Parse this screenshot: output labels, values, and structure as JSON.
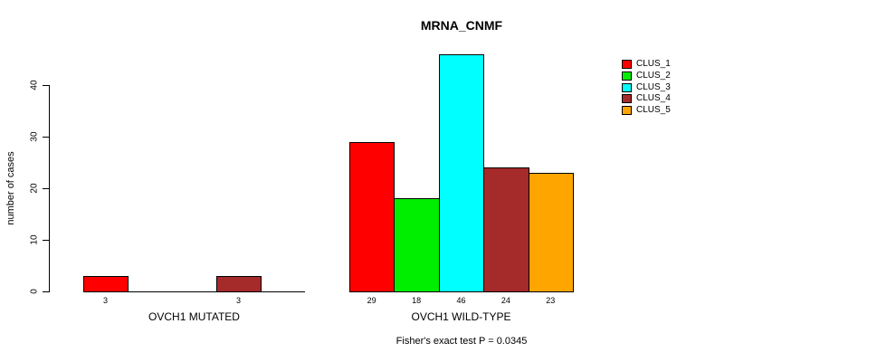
{
  "title": "MRNA_CNMF",
  "footnote": "Fisher's exact test P = 0.0345",
  "colors": {
    "axis": "#000000",
    "clus_1": "#ff0000",
    "clus_2": "#00ee00",
    "clus_3": "#00ffff",
    "clus_4": "#a52a2a",
    "clus_5": "#ffa500"
  },
  "chart_data": {
    "type": "bar",
    "title": "MRNA_CNMF",
    "ylabel": "number of cases",
    "xlabel": "",
    "ylim": [
      0,
      46
    ],
    "yticks": [
      0,
      10,
      20,
      30,
      40
    ],
    "grid": false,
    "legend_position": "top-right",
    "legend": [
      {
        "label": "CLUS_1",
        "color": "#ff0000"
      },
      {
        "label": "CLUS_2",
        "color": "#00ee00"
      },
      {
        "label": "CLUS_3",
        "color": "#00ffff"
      },
      {
        "label": "CLUS_4",
        "color": "#a52a2a"
      },
      {
        "label": "CLUS_5",
        "color": "#ffa500"
      }
    ],
    "series_names": [
      "CLUS_1",
      "CLUS_2",
      "CLUS_3",
      "CLUS_4",
      "CLUS_5"
    ],
    "groups": [
      {
        "label": "OVCH1 MUTATED",
        "values": [
          3,
          0,
          0,
          3,
          0
        ],
        "value_labels": [
          "3",
          "",
          "",
          "3",
          ""
        ]
      },
      {
        "label": "OVCH1 WILD-TYPE",
        "values": [
          29,
          18,
          46,
          24,
          23
        ],
        "value_labels": [
          "29",
          "18",
          "46",
          "24",
          "23"
        ]
      }
    ],
    "annotation": "Fisher's exact test P = 0.0345"
  }
}
